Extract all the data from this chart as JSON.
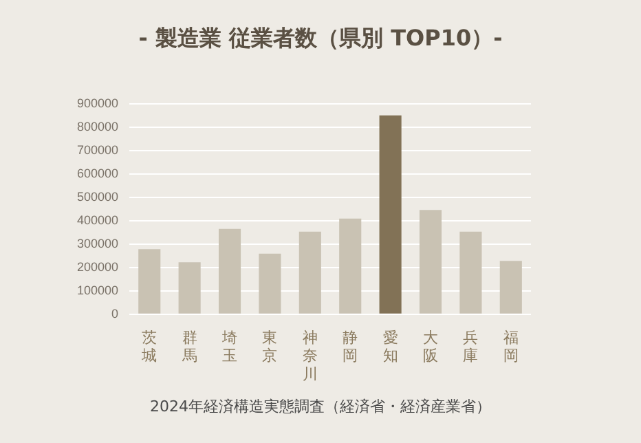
{
  "chart_data": {
    "type": "bar",
    "title": "- 製造業 従業者数（県別 TOP10）-",
    "categories": [
      "茨城",
      "群馬",
      "埼玉",
      "東京",
      "神奈川",
      "静岡",
      "愛知",
      "大阪",
      "兵庫",
      "福岡"
    ],
    "values": [
      278000,
      222000,
      365000,
      259000,
      353000,
      409000,
      850000,
      446000,
      353000,
      228000
    ],
    "colors": [
      "#c9c2b3",
      "#c9c2b3",
      "#c9c2b3",
      "#c9c2b3",
      "#c9c2b3",
      "#c9c2b3",
      "#827256",
      "#c9c2b3",
      "#c9c2b3",
      "#c9c2b3"
    ],
    "ylim": [
      0,
      900000
    ],
    "yticks": [
      0,
      100000,
      200000,
      300000,
      400000,
      500000,
      600000,
      700000,
      800000,
      900000
    ],
    "grid": "y",
    "legend": false,
    "annotations": [
      "2024年経済構造実態調査（経済省・経済産業省）"
    ]
  }
}
